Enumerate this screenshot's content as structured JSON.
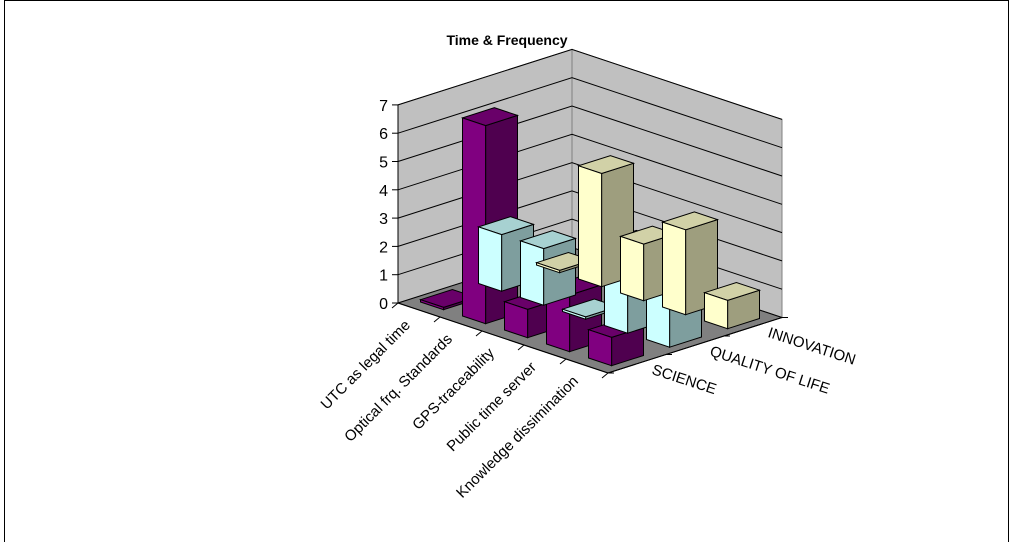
{
  "chart_data": {
    "type": "bar",
    "title": "Time & Frequency",
    "categories": [
      "UTC as legal time",
      "Optical frq. Standards",
      "GPS-traceability",
      "Public time server",
      "Knowledge dissimination"
    ],
    "series": [
      {
        "name": "INNOVATION",
        "values": [
          0,
          4,
          2,
          3,
          1
        ],
        "color": "#FFFFCC"
      },
      {
        "name": "QUALITY OF LIFE",
        "values": [
          2,
          2,
          0,
          3,
          3
        ],
        "color": "#CCFFFF"
      },
      {
        "name": "SCIENCE",
        "values": [
          0,
          7,
          1,
          2,
          1
        ],
        "color": "#800080"
      }
    ],
    "yticks": [
      0,
      1,
      2,
      3,
      4,
      5,
      6,
      7
    ],
    "ylim": [
      0,
      7
    ],
    "grid": true,
    "style": "3d-column"
  }
}
